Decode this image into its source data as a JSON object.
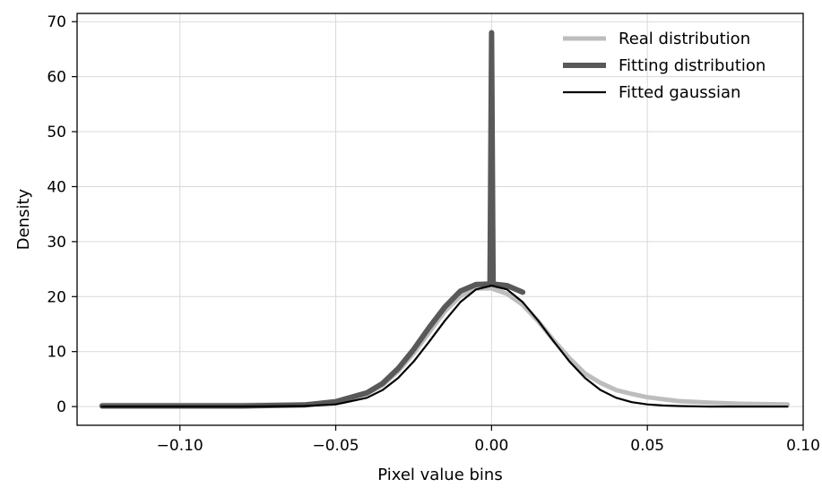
{
  "chart_data": {
    "type": "line",
    "title": "",
    "xlabel": "Pixel value bins",
    "ylabel": "Density",
    "xlim": [
      -0.133,
      0.1
    ],
    "ylim": [
      -3.4,
      71.5
    ],
    "xticks": [
      -0.1,
      -0.05,
      0.0,
      0.05,
      0.1
    ],
    "xtick_labels": [
      "−0.10",
      "−0.05",
      "0.00",
      "0.05",
      "0.10"
    ],
    "yticks": [
      0,
      10,
      20,
      30,
      40,
      50,
      60,
      70
    ],
    "ytick_labels": [
      "0",
      "10",
      "20",
      "30",
      "40",
      "50",
      "60",
      "70"
    ],
    "grid": true,
    "legend_position": "top-right",
    "series": [
      {
        "name": "Real distribution",
        "color": "#bdbdbd",
        "x": [
          -0.125,
          -0.1,
          -0.08,
          -0.06,
          -0.05,
          -0.04,
          -0.035,
          -0.03,
          -0.025,
          -0.02,
          -0.015,
          -0.01,
          -0.005,
          0.0,
          0.005,
          0.01,
          0.015,
          0.02,
          0.025,
          0.03,
          0.035,
          0.04,
          0.045,
          0.05,
          0.06,
          0.07,
          0.08,
          0.095
        ],
        "y": [
          0.3,
          0.3,
          0.3,
          0.4,
          0.9,
          2.3,
          3.9,
          6.4,
          9.7,
          13.5,
          17.3,
          20.1,
          21.5,
          21.5,
          20.5,
          18.5,
          15.5,
          12.0,
          8.8,
          6.0,
          4.3,
          3.0,
          2.3,
          1.7,
          1.0,
          0.7,
          0.5,
          0.4
        ]
      },
      {
        "name": "Fitting distribution",
        "color": "#595959",
        "x": [
          -0.125,
          -0.1,
          -0.08,
          -0.06,
          -0.05,
          -0.04,
          -0.035,
          -0.03,
          -0.025,
          -0.02,
          -0.015,
          -0.01,
          -0.005,
          -0.0005,
          0.0,
          0.0005,
          0.005,
          0.01
        ],
        "y": [
          0.1,
          0.1,
          0.1,
          0.3,
          0.9,
          2.5,
          4.2,
          6.9,
          10.4,
          14.4,
          18.1,
          21.0,
          22.2,
          22.3,
          68.0,
          22.3,
          22.0,
          20.8
        ]
      },
      {
        "name": "Fitted gaussian",
        "color": "#000000",
        "x": [
          -0.125,
          -0.1,
          -0.08,
          -0.06,
          -0.05,
          -0.04,
          -0.035,
          -0.03,
          -0.025,
          -0.02,
          -0.015,
          -0.01,
          -0.005,
          0.0,
          0.005,
          0.01,
          0.015,
          0.02,
          0.025,
          0.03,
          0.035,
          0.04,
          0.045,
          0.05,
          0.055,
          0.06,
          0.07,
          0.08,
          0.095
        ],
        "y": [
          0.0,
          0.0,
          0.0,
          0.1,
          0.4,
          1.6,
          3.0,
          5.2,
          8.2,
          11.8,
          15.6,
          19.0,
          21.3,
          22.0,
          21.3,
          19.0,
          15.6,
          11.8,
          8.2,
          5.2,
          3.0,
          1.6,
          0.8,
          0.4,
          0.2,
          0.1,
          0.0,
          0.0,
          0.0
        ]
      }
    ]
  }
}
